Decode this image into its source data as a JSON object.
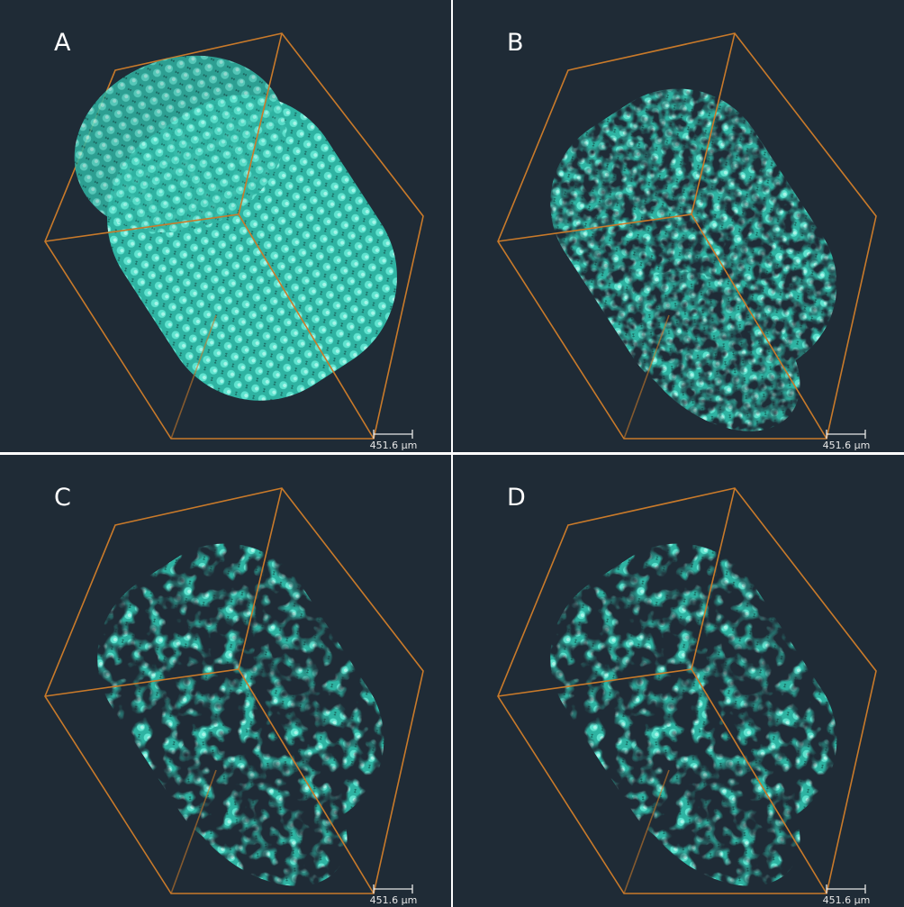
{
  "panels": [
    {
      "label": "A",
      "scale_bar": "451.6 µm"
    },
    {
      "label": "B",
      "scale_bar": "451.6 µm"
    },
    {
      "label": "C",
      "scale_bar": "451.6 µm"
    },
    {
      "label": "D",
      "scale_bar": "451.6 µm"
    }
  ]
}
